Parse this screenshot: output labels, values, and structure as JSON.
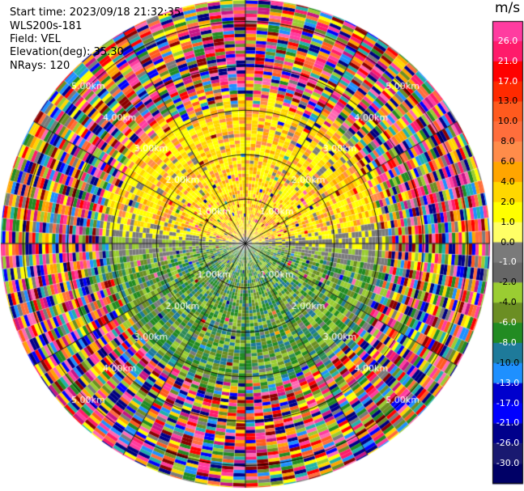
{
  "header": {
    "start_time": "Start time: 2023/09/18 21:32:35",
    "instrument": "WLS200s-181",
    "field": "Field: VEL",
    "elevation": "Elevation(deg): 35.30",
    "nrays": "NRays: 120"
  },
  "chart_data": {
    "type": "heatmap",
    "projection": "polar-ppi",
    "field": "VEL",
    "units": "m/s",
    "n_rays": 120,
    "elevation_deg": 35.3,
    "range_rings_km": [
      1.0,
      2.0,
      3.0,
      4.0,
      5.0
    ],
    "range_ring_labels": [
      "1.00km",
      "2.00km",
      "3.00km",
      "4.00km",
      "5.00km"
    ],
    "max_range_km": 5.5,
    "spokes_deg": [
      0,
      30,
      60,
      90,
      120,
      150,
      180,
      210,
      240,
      270,
      300,
      330
    ],
    "colorbar": {
      "title": "m/s",
      "labels": [
        "26.0",
        "21.0",
        "17.0",
        "13.0",
        "10.0",
        "8.0",
        "6.0",
        "4.0",
        "2.0",
        "1.0",
        "0.0",
        "-1.0",
        "-2.0",
        "-4.0",
        "-6.0",
        "-8.0",
        "-10.0",
        "-13.0",
        "-17.0",
        "-21.0",
        "-26.0",
        "-30.0"
      ],
      "colors": [
        "#ff3ca0",
        "#ff1b6b",
        "#ff0000",
        "#ff2a00",
        "#ff5a1e",
        "#ff6e3c",
        "#ff8c4a",
        "#ffa500",
        "#ffd700",
        "#ffff00",
        "#ffff66",
        "#7a7a7a",
        "#666666",
        "#9acd32",
        "#6b8e23",
        "#228b22",
        "#1e7a9a",
        "#1e90ff",
        "#0000cd",
        "#0000ff",
        "#00008b",
        "#191970",
        "#000066"
      ]
    },
    "pattern": {
      "north_half": "positive velocity (yellow to orange) within about 3 km",
      "south_half": "negative velocity (olive to green to teal) within about 3 km",
      "near_ranges_east_west": "near-zero (gray)",
      "beyond_3km": "noisy, all colors"
    }
  }
}
